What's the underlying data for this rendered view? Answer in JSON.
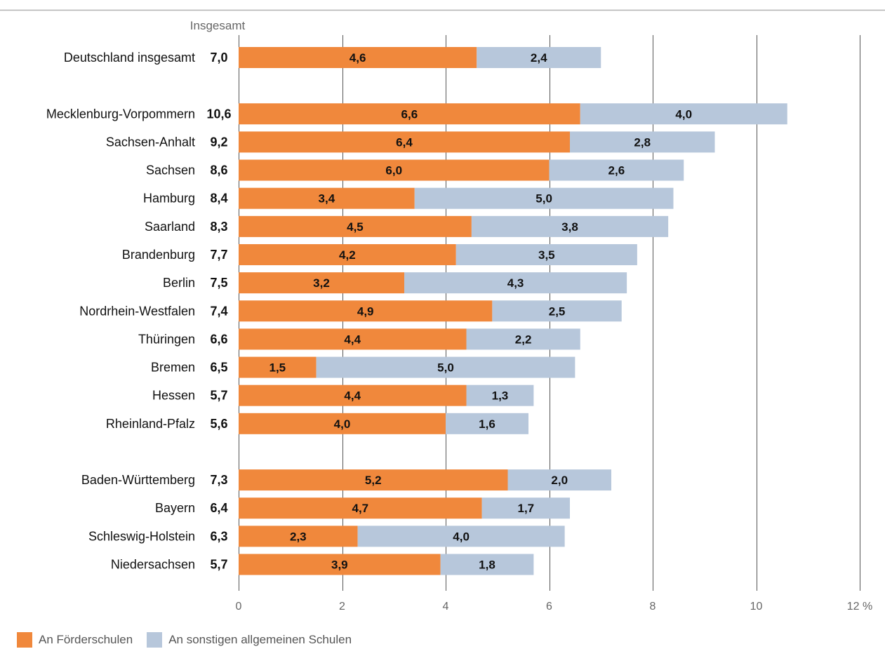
{
  "chart_data": {
    "type": "bar",
    "orientation": "horizontal",
    "stacked": true,
    "total_header": "Insgesamt",
    "x_unit": "%",
    "xlim": [
      0,
      12
    ],
    "x_ticks": [
      0,
      2,
      4,
      6,
      8,
      10,
      12
    ],
    "x_tick_labels": [
      "0",
      "2",
      "4",
      "6",
      "8",
      "10",
      "12 %"
    ],
    "grid": true,
    "legend_position": "bottom-left",
    "groups": [
      {
        "categories": [
          {
            "name": "Deutschland insgesamt",
            "total": "7,0",
            "values": [
              4.6,
              2.4
            ],
            "labels": [
              "4,6",
              "2,4"
            ]
          }
        ]
      },
      {
        "categories": [
          {
            "name": "Mecklenburg-Vorpommern",
            "total": "10,6",
            "values": [
              6.6,
              4.0
            ],
            "labels": [
              "6,6",
              "4,0"
            ]
          },
          {
            "name": "Sachsen-Anhalt",
            "total": "9,2",
            "values": [
              6.4,
              2.8
            ],
            "labels": [
              "6,4",
              "2,8"
            ]
          },
          {
            "name": "Sachsen",
            "total": "8,6",
            "values": [
              6.0,
              2.6
            ],
            "labels": [
              "6,0",
              "2,6"
            ]
          },
          {
            "name": "Hamburg",
            "total": "8,4",
            "values": [
              3.4,
              5.0
            ],
            "labels": [
              "3,4",
              "5,0"
            ]
          },
          {
            "name": "Saarland",
            "total": "8,3",
            "values": [
              4.5,
              3.8
            ],
            "labels": [
              "4,5",
              "3,8"
            ]
          },
          {
            "name": "Brandenburg",
            "total": "7,7",
            "values": [
              4.2,
              3.5
            ],
            "labels": [
              "4,2",
              "3,5"
            ]
          },
          {
            "name": "Berlin",
            "total": "7,5",
            "values": [
              3.2,
              4.3
            ],
            "labels": [
              "3,2",
              "4,3"
            ]
          },
          {
            "name": "Nordrhein-Westfalen",
            "total": "7,4",
            "values": [
              4.9,
              2.5
            ],
            "labels": [
              "4,9",
              "2,5"
            ]
          },
          {
            "name": "Thüringen",
            "total": "6,6",
            "values": [
              4.4,
              2.2
            ],
            "labels": [
              "4,4",
              "2,2"
            ]
          },
          {
            "name": "Bremen",
            "total": "6,5",
            "values": [
              1.5,
              5.0
            ],
            "labels": [
              "1,5",
              "5,0"
            ]
          },
          {
            "name": "Hessen",
            "total": "5,7",
            "values": [
              4.4,
              1.3
            ],
            "labels": [
              "4,4",
              "1,3"
            ]
          },
          {
            "name": "Rheinland-Pfalz",
            "total": "5,6",
            "values": [
              4.0,
              1.6
            ],
            "labels": [
              "4,0",
              "1,6"
            ]
          }
        ]
      },
      {
        "categories": [
          {
            "name": "Baden-Württemberg",
            "total": "7,3",
            "values": [
              5.2,
              2.0
            ],
            "labels": [
              "5,2",
              "2,0"
            ]
          },
          {
            "name": "Bayern",
            "total": "6,4",
            "values": [
              4.7,
              1.7
            ],
            "labels": [
              "4,7",
              "1,7"
            ]
          },
          {
            "name": "Schleswig-Holstein",
            "total": "6,3",
            "values": [
              2.3,
              4.0
            ],
            "labels": [
              "2,3",
              "4,0"
            ]
          },
          {
            "name": "Niedersachsen",
            "total": "5,7",
            "values": [
              3.9,
              1.8
            ],
            "labels": [
              "3,9",
              "1,8"
            ]
          }
        ]
      }
    ],
    "series": [
      {
        "name": "An Förderschulen",
        "color": "#f0883c"
      },
      {
        "name": "An sonstigen allgemeinen Schulen",
        "color": "#b7c7db"
      }
    ]
  }
}
